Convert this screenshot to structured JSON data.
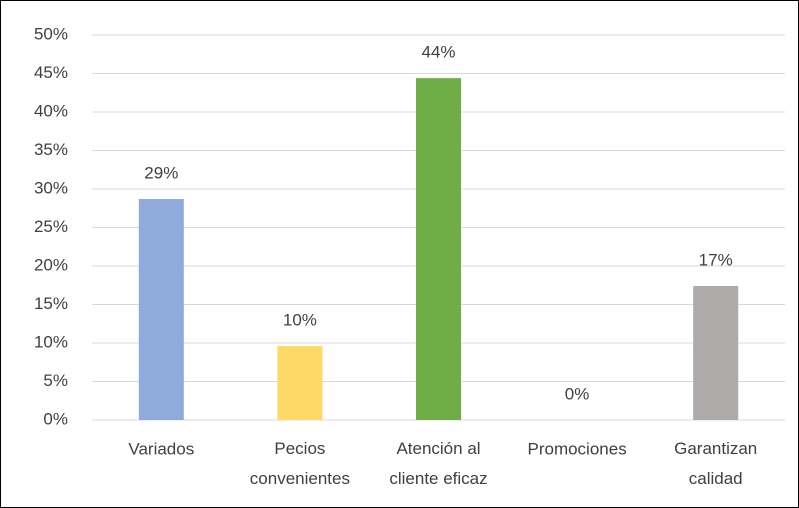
{
  "chart_data": {
    "type": "bar",
    "categories": [
      "Variados",
      "Pecios convenientes",
      "Atención al cliente eficaz",
      "Promociones",
      "Garantizan calidad"
    ],
    "values": [
      28.7,
      9.6,
      44.4,
      0,
      17.4
    ],
    "value_labels": [
      "29%",
      "10%",
      "44%",
      "0%",
      "17%"
    ],
    "colors": [
      "#8faadc",
      "#ffd966",
      "#70ad47",
      "#4472c4",
      "#aeaaaa"
    ],
    "ylim": [
      0,
      50
    ],
    "yticks": [
      {
        "value": 0,
        "label": "0%"
      },
      {
        "value": 5,
        "label": "5%"
      },
      {
        "value": 10,
        "label": "10%"
      },
      {
        "value": 15,
        "label": "15%"
      },
      {
        "value": 20,
        "label": "20%"
      },
      {
        "value": 25,
        "label": "25%"
      },
      {
        "value": 30,
        "label": "30%"
      },
      {
        "value": 35,
        "label": "35%"
      },
      {
        "value": 40,
        "label": "40%"
      },
      {
        "value": 45,
        "label": "45%"
      },
      {
        "value": 50,
        "label": "50%"
      }
    ],
    "grid": true
  }
}
